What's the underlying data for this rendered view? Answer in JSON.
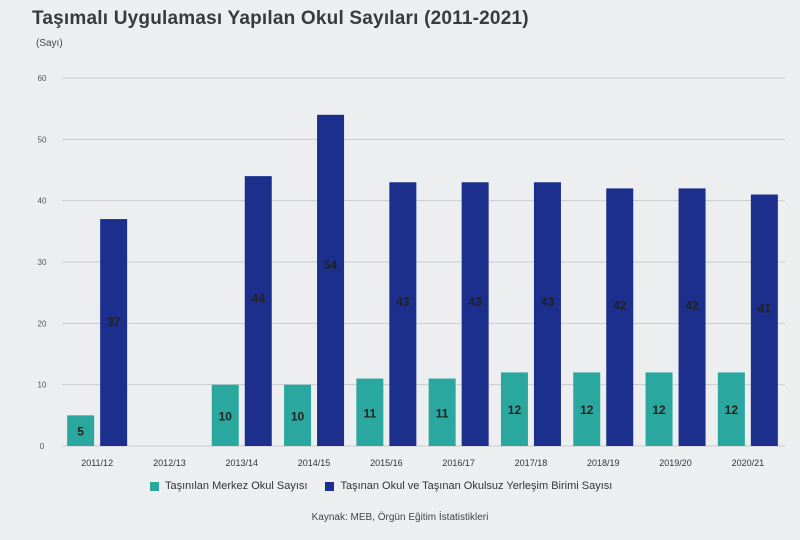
{
  "title": "Taşımalı Uygulaması Yapılan Okul Sayıları (2011-2021)",
  "unit_label": "(Sayı)",
  "source": "Kaynak: MEB, Örgün Eğitim İstatistikleri",
  "colors": {
    "teal": "#2aa8a0",
    "navy": "#1c2f8c",
    "grid": "#c9ccd0",
    "label": "#222222"
  },
  "chart_data": {
    "type": "bar",
    "title": "Taşımalı Uygulaması Yapılan Okul Sayıları (2011-2021)",
    "ylabel": "(Sayı)",
    "xlabel": "",
    "categories": [
      "2011/12",
      "2012/13",
      "2013/14",
      "2014/15",
      "2015/16",
      "2016/17",
      "2017/18",
      "2018/19",
      "2019/20",
      "2020/21"
    ],
    "ylim": [
      0,
      60
    ],
    "yticks": [
      0,
      10,
      20,
      30,
      40,
      50,
      60
    ],
    "grid": true,
    "legend_position": "bottom",
    "series": [
      {
        "name": "Taşınılan Merkez Okul Sayısı",
        "color": "#2aa8a0",
        "values": [
          5,
          null,
          10,
          10,
          11,
          11,
          12,
          12,
          12,
          12
        ],
        "labels": [
          "5",
          "",
          "10",
          "10",
          "11",
          "11",
          "12",
          "12",
          "12",
          "12"
        ]
      },
      {
        "name": "Taşınan Okul ve Taşınan Okulsuz Yerleşim Birimi Sayısı",
        "color": "#1c2f8c",
        "values": [
          37,
          null,
          44,
          54,
          43,
          43,
          43,
          42,
          42,
          41
        ],
        "labels": [
          "37",
          "",
          "44",
          "54",
          "43",
          "43",
          "43",
          "42",
          "42",
          "41"
        ]
      }
    ]
  }
}
